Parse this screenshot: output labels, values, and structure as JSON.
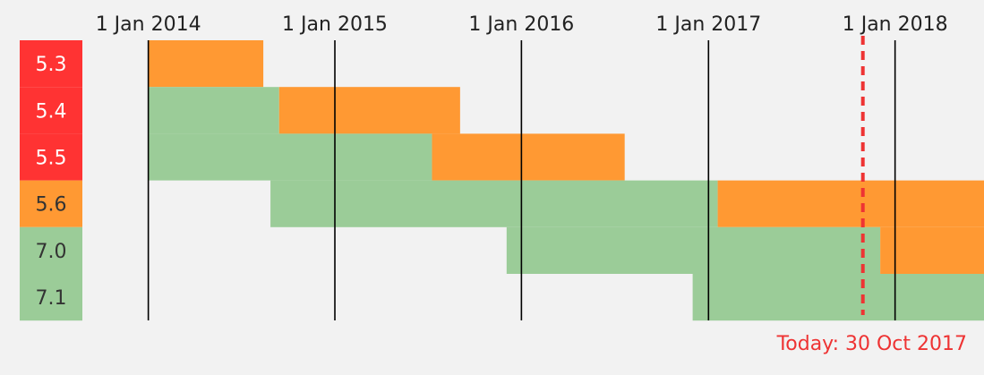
{
  "chart_data": {
    "type": "gantt",
    "date_axis": {
      "ticks": [
        {
          "date": "2014-01-01",
          "label": "1 Jan 2014"
        },
        {
          "date": "2015-01-01",
          "label": "1 Jan 2015"
        },
        {
          "date": "2016-01-01",
          "label": "1 Jan 2016"
        },
        {
          "date": "2017-01-01",
          "label": "1 Jan 2017"
        },
        {
          "date": "2018-01-01",
          "label": "1 Jan 2018"
        }
      ],
      "range": [
        "2013-08-25",
        "2018-06-24"
      ],
      "gridlines": true
    },
    "status_colors": {
      "active": "#9bcc98",
      "security": "#ff9933",
      "eol": "#ff3333"
    },
    "versions": [
      {
        "label": "5.3",
        "status": "eol",
        "active": null,
        "security": [
          "2014-01-01",
          "2014-08-14"
        ]
      },
      {
        "label": "5.4",
        "status": "eol",
        "active": [
          "2014-01-01",
          "2014-09-14"
        ],
        "security": [
          "2014-09-14",
          "2015-09-03"
        ]
      },
      {
        "label": "5.5",
        "status": "eol",
        "active": [
          "2014-01-01",
          "2015-07-10"
        ],
        "security": [
          "2015-07-10",
          "2016-07-21"
        ]
      },
      {
        "label": "5.6",
        "status": "security",
        "active": [
          "2014-08-28",
          "2017-01-19"
        ],
        "security": [
          "2017-01-19",
          "2018-12-31"
        ]
      },
      {
        "label": "7.0",
        "status": "active",
        "active": [
          "2015-12-03",
          "2017-12-03"
        ],
        "security": [
          "2017-12-03",
          "2018-12-03"
        ]
      },
      {
        "label": "7.1",
        "status": "active",
        "active": [
          "2016-12-01",
          "2019-12-01"
        ],
        "security": null
      }
    ],
    "today": {
      "date": "2017-10-30",
      "label": "Today: 30 Oct 2017",
      "color": "#ee3333"
    }
  }
}
